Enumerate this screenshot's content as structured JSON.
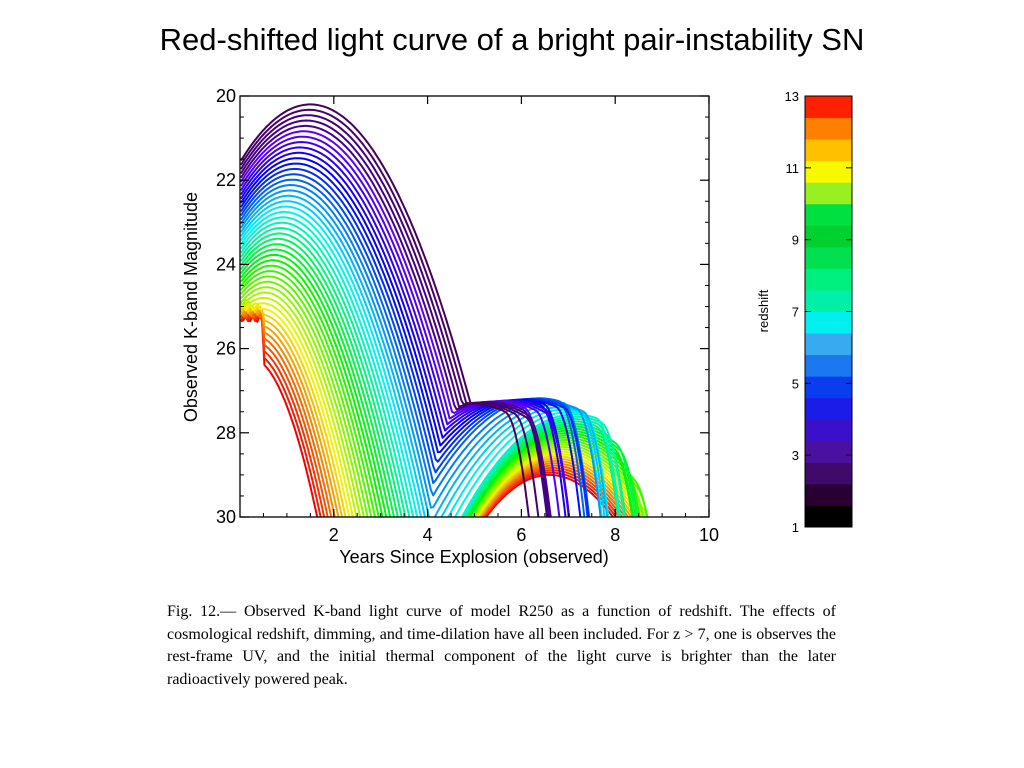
{
  "slide": {
    "title": "Red-shifted light curve of a bright pair-instability SN"
  },
  "chart_data": {
    "type": "line",
    "title": "",
    "xlabel": "Years Since Explosion (observed)",
    "ylabel": "Observed K-band Magnitude",
    "xlim": [
      0,
      10
    ],
    "ylim": [
      30,
      20
    ],
    "y_inverted": true,
    "x_ticks": [
      2,
      4,
      6,
      8,
      10
    ],
    "y_ticks": [
      20,
      22,
      24,
      26,
      28,
      30
    ],
    "grid": false,
    "colorbar": {
      "label": "redshift",
      "range": [
        1,
        13
      ],
      "tick_labels": [
        1,
        3,
        5,
        7,
        9,
        11,
        13
      ],
      "colors": [
        "#000000",
        "#2a0033",
        "#3f0a6a",
        "#4a10a0",
        "#3a10c8",
        "#1c1ce8",
        "#0a3cf0",
        "#1c78f0",
        "#38aaf0",
        "#00f0f0",
        "#00f0a8",
        "#00f080",
        "#00e050",
        "#00d030",
        "#00e040",
        "#98f020",
        "#f8f800",
        "#ffc000",
        "#ff8000",
        "#ff2000"
      ]
    },
    "redshift_min": 1,
    "redshift_max": 13
  },
  "caption": {
    "text": "Fig. 12.— Observed K-band light curve of model R250 as a function of redshift. The effects of cosmological redshift, dimming, and time-dilation have all been included. For z > 7, one is observes the rest-frame UV, and the initial thermal component of the light curve is brighter than the later radioactively powered peak."
  }
}
